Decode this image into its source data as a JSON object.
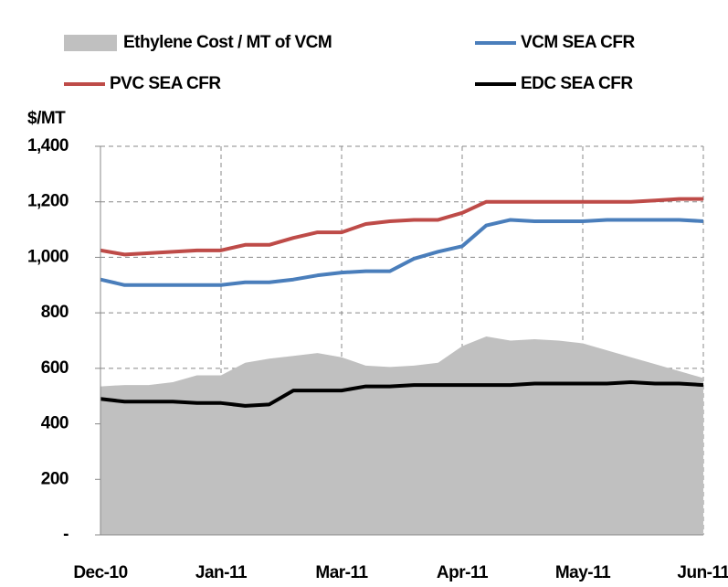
{
  "chart_data": {
    "type": "line",
    "y_label": "$/MT",
    "categories": [
      "Dec-10",
      null,
      null,
      null,
      null,
      "Jan-11",
      null,
      null,
      null,
      null,
      "Mar-11",
      null,
      null,
      null,
      null,
      "Apr-11",
      null,
      null,
      null,
      null,
      "May-11",
      null,
      null,
      null,
      null,
      "Jun-11"
    ],
    "series": [
      {
        "name": "Ethylene Cost / MT of VCM",
        "kind": "area",
        "color": "#c0c0c0",
        "values": [
          535,
          540,
          540,
          550,
          575,
          575,
          620,
          635,
          645,
          655,
          640,
          610,
          605,
          610,
          620,
          680,
          715,
          700,
          705,
          700,
          690,
          665,
          640,
          615,
          590,
          565
        ]
      },
      {
        "name": "VCM SEA CFR",
        "kind": "line",
        "color": "#4a7ebb",
        "values": [
          920,
          900,
          900,
          900,
          900,
          900,
          910,
          910,
          920,
          935,
          945,
          950,
          950,
          995,
          1020,
          1040,
          1115,
          1135,
          1130,
          1130,
          1130,
          1135,
          1135,
          1135,
          1135,
          1130
        ]
      },
      {
        "name": "PVC SEA CFR",
        "kind": "line",
        "color": "#be4b48",
        "values": [
          1025,
          1010,
          1015,
          1020,
          1025,
          1025,
          1045,
          1045,
          1070,
          1090,
          1090,
          1120,
          1130,
          1135,
          1135,
          1160,
          1200,
          1200,
          1200,
          1200,
          1200,
          1200,
          1200,
          1205,
          1210,
          1210
        ]
      },
      {
        "name": "EDC SEA CFR",
        "kind": "line",
        "color": "#000000",
        "values": [
          490,
          480,
          480,
          480,
          475,
          475,
          465,
          470,
          520,
          520,
          520,
          535,
          535,
          540,
          540,
          540,
          540,
          540,
          545,
          545,
          545,
          545,
          550,
          545,
          545,
          540
        ]
      }
    ],
    "ylim": [
      0,
      1400
    ],
    "yticks": [
      {
        "value": 0,
        "label": "-"
      },
      200,
      400,
      600,
      800,
      {
        "value": 1000,
        "label": "1,000"
      },
      {
        "value": 1200,
        "label": "1,200"
      },
      {
        "value": 1400,
        "label": "1,400"
      }
    ],
    "grid": true
  }
}
